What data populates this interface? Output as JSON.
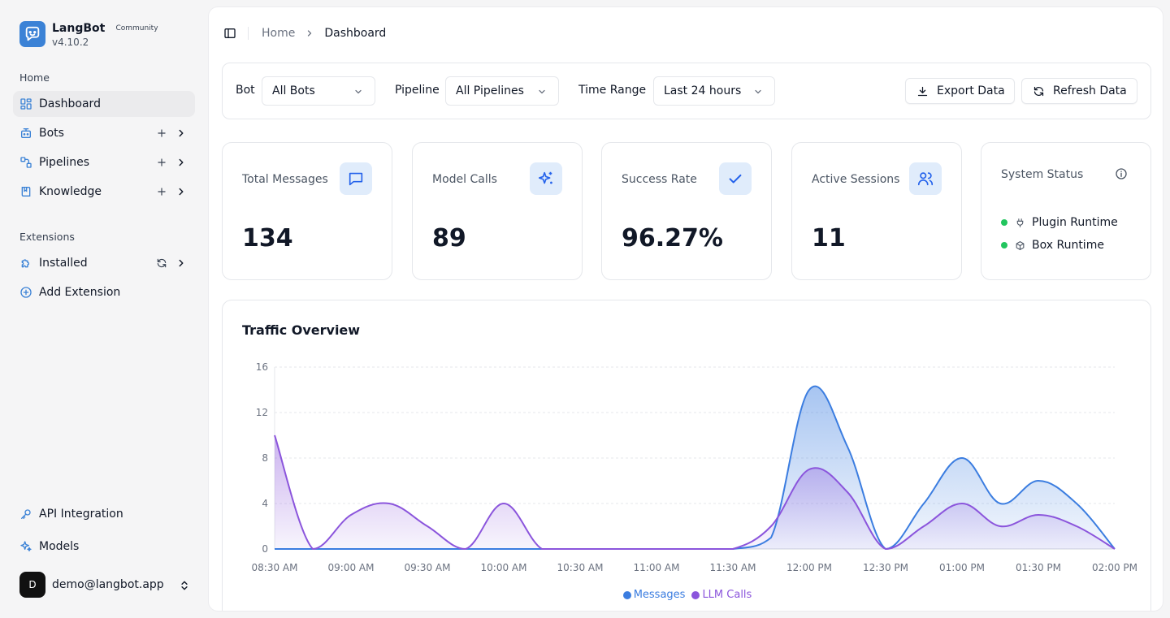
{
  "app": {
    "name": "LangBot",
    "badge": "Community",
    "version": "v4.10.2"
  },
  "sidebar": {
    "home_section": "Home",
    "items": [
      {
        "label": "Dashboard",
        "icon": "dashboard-icon"
      },
      {
        "label": "Bots",
        "icon": "bot-icon"
      },
      {
        "label": "Pipelines",
        "icon": "pipeline-icon"
      },
      {
        "label": "Knowledge",
        "icon": "book-icon"
      }
    ],
    "extensions_section": "Extensions",
    "extensions": [
      {
        "label": "Installed",
        "icon": "puzzle-icon"
      },
      {
        "label": "Add Extension",
        "icon": "plus-circle-icon"
      }
    ],
    "bottom": [
      {
        "label": "API Integration",
        "icon": "key-icon"
      },
      {
        "label": "Models",
        "icon": "sparkles-icon"
      }
    ],
    "user": {
      "initial": "D",
      "email": "demo@langbot.app"
    }
  },
  "breadcrumb": {
    "home": "Home",
    "current": "Dashboard"
  },
  "filters": {
    "bot_label": "Bot",
    "bot_value": "All Bots",
    "pipeline_label": "Pipeline",
    "pipeline_value": "All Pipelines",
    "range_label": "Time Range",
    "range_value": "Last 24 hours",
    "export_label": "Export Data",
    "refresh_label": "Refresh Data"
  },
  "stats": [
    {
      "title": "Total Messages",
      "value": "134",
      "icon": "message-square-icon"
    },
    {
      "title": "Model Calls",
      "value": "89",
      "icon": "sparkles-icon"
    },
    {
      "title": "Success Rate",
      "value": "96.27%",
      "icon": "check-icon"
    },
    {
      "title": "Active Sessions",
      "value": "11",
      "icon": "users-icon"
    }
  ],
  "system_status": {
    "title": "System Status",
    "items": [
      {
        "label": "Plugin Runtime",
        "icon": "plug-icon",
        "status_color": "#22c55e"
      },
      {
        "label": "Box Runtime",
        "icon": "box-icon",
        "status_color": "#22c55e"
      }
    ]
  },
  "colors": {
    "accent": "#3b82d6",
    "messages": "#3b7de0",
    "llm": "#8b55dc"
  },
  "chart_data": {
    "type": "area",
    "title": "Traffic Overview",
    "x": [
      "08:30 AM",
      "08:45 AM",
      "09:00 AM",
      "09:15 AM",
      "09:30 AM",
      "09:45 AM",
      "10:00 AM",
      "10:15 AM",
      "10:30 AM",
      "10:45 AM",
      "11:00 AM",
      "11:15 AM",
      "11:30 AM",
      "11:45 AM",
      "12:00 PM",
      "12:15 PM",
      "12:30 PM",
      "12:45 PM",
      "01:00 PM",
      "01:15 PM",
      "01:30 PM",
      "01:45 PM",
      "02:00 PM"
    ],
    "x_ticks": [
      "08:30 AM",
      "09:00 AM",
      "09:30 AM",
      "10:00 AM",
      "10:30 AM",
      "11:00 AM",
      "11:30 AM",
      "12:00 PM",
      "12:30 PM",
      "01:00 PM",
      "01:30 PM",
      "02:00 PM"
    ],
    "series": [
      {
        "name": "Messages",
        "values": [
          0,
          0,
          0,
          0,
          0,
          0,
          0,
          0,
          0,
          0,
          0,
          0,
          0,
          1,
          14,
          9,
          0,
          4,
          8,
          4,
          6,
          4,
          0
        ]
      },
      {
        "name": "LLM Calls",
        "values": [
          10,
          0,
          3,
          4,
          2,
          0,
          4,
          0,
          0,
          0,
          0,
          0,
          0,
          2,
          7,
          5,
          0,
          2,
          4,
          2,
          3,
          2,
          0
        ]
      }
    ],
    "y_ticks": [
      0,
      4,
      8,
      12,
      16
    ],
    "ylim": [
      0,
      16
    ],
    "grid": true,
    "legend": "bottom-center"
  }
}
